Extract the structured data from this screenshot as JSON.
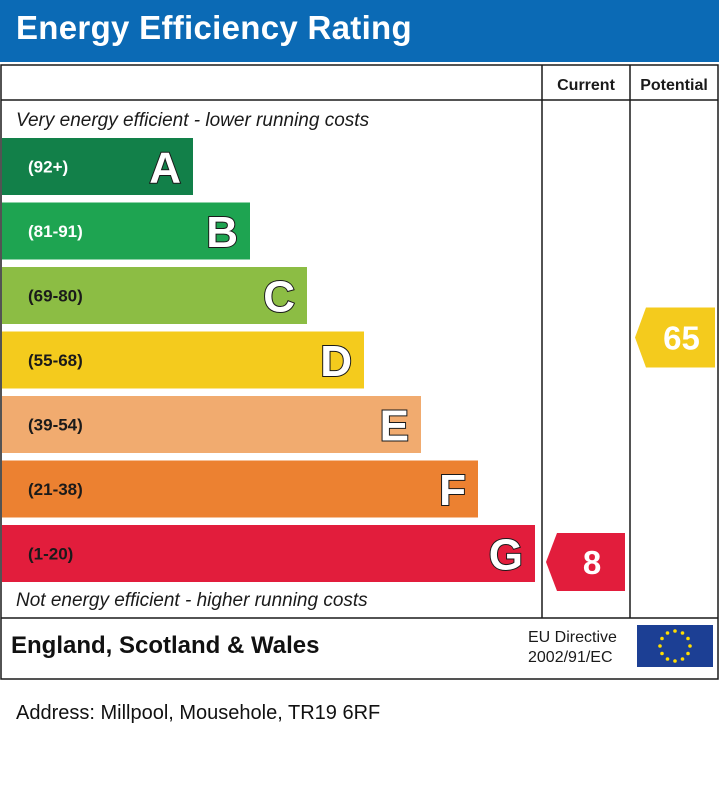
{
  "header": {
    "title": "Energy Efficiency Rating"
  },
  "chart_data": {
    "type": "bar",
    "columns": {
      "current": "Current",
      "potential": "Potential"
    },
    "top_caption": "Very energy efficient - lower running costs",
    "bottom_caption": "Not energy efficient - higher running costs",
    "bands": [
      {
        "letter": "A",
        "range": "(92+)",
        "min": 92,
        "max": 100,
        "color": "#128049",
        "text_color": "#ffffff"
      },
      {
        "letter": "B",
        "range": "(81-91)",
        "min": 81,
        "max": 91,
        "color": "#1ea451",
        "text_color": "#ffffff"
      },
      {
        "letter": "C",
        "range": "(69-80)",
        "min": 69,
        "max": 80,
        "color": "#8cbd44",
        "text_color": "#1a1a1a"
      },
      {
        "letter": "D",
        "range": "(55-68)",
        "min": 55,
        "max": 68,
        "color": "#f4cb1d",
        "text_color": "#1a1a1a"
      },
      {
        "letter": "E",
        "range": "(39-54)",
        "min": 39,
        "max": 54,
        "color": "#f1ab6f",
        "text_color": "#1a1a1a"
      },
      {
        "letter": "F",
        "range": "(21-38)",
        "min": 21,
        "max": 38,
        "color": "#ec8131",
        "text_color": "#1a1a1a"
      },
      {
        "letter": "G",
        "range": "(1-20)",
        "min": 1,
        "max": 20,
        "color": "#e21d3c",
        "text_color": "#1a1a1a"
      }
    ],
    "current": {
      "value": 8,
      "band": "G",
      "color": "#e21d3c"
    },
    "potential": {
      "value": 65,
      "band": "D",
      "color": "#f4cb1d"
    },
    "footer": {
      "region": "England, Scotland & Wales",
      "eu_line1": "EU Directive",
      "eu_line2": "2002/91/EC",
      "eu_flag_color": "#1c3f94",
      "eu_star_color": "#ffde00"
    }
  },
  "address": "Address: Millpool, Mousehole, TR19 6RF"
}
